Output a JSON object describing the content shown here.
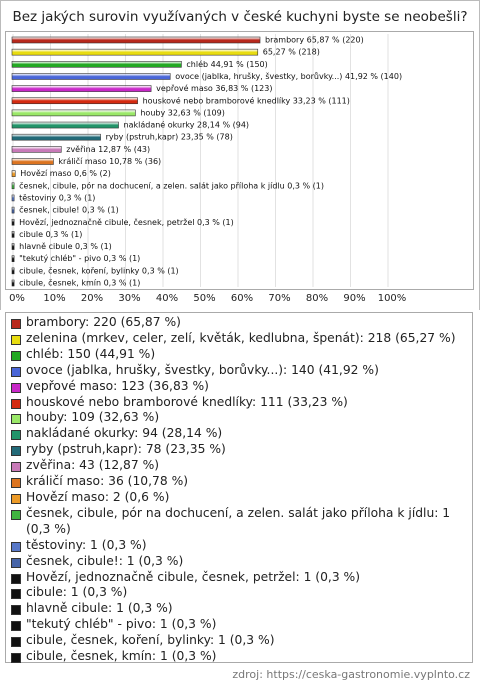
{
  "chart_data": {
    "type": "hbar",
    "title": "Bez jakých surovin využívaných v české kuchyni byste se neobešli?",
    "values": [
      65.87,
      65.27,
      44.91,
      41.92,
      36.83,
      33.23,
      32.63,
      28.14,
      23.35,
      12.87,
      10.78,
      0.6,
      0.3,
      0.3,
      0.3,
      0.3,
      0.3,
      0.3,
      0.3,
      0.3,
      0.3
    ],
    "value_labels": [
      "brambory 65,87 % (220)",
      "65,27 % (218)",
      "chléb 44,91 % (150)",
      "ovoce (jablka, hrušky, švestky, borůvky...) 41,92 % (140)",
      "vepřové maso 36,83 % (123)",
      "houskové nebo bramborové knedlíky 33,23 % (111)",
      "houby 32,63 % (109)",
      "nakládané okurky 28,14 % (94)",
      "ryby (pstruh,kapr) 23,35 % (78)",
      "zvěřina 12,87 % (43)",
      "králičí maso 10,78 % (36)",
      "Hovězí maso 0,6 % (2)",
      "česnek, cibule, pór na dochucení, a zelen. salát jako příloha k jídlu 0,3 % (1)",
      "těstoviny 0,3 % (1)",
      "česnek, cibule! 0,3 % (1)",
      "Hovězí, jednoznačně cibule, česnek, petržel 0,3 % (1)",
      "cibule 0,3 % (1)",
      "hlavně cibule 0,3 % (1)",
      "\"tekutý chléb\" - pivo 0,3 % (1)",
      "cibule, česnek, koření, bylinky 0,3 % (1)",
      "cibule, česnek, kmín 0,3 % (1)"
    ],
    "legend_labels": [
      "brambory: 220 (65,87 %)",
      "zelenina (mrkev, celer, zelí, květák, kedlubna, špenát): 218 (65,27 %)",
      "chléb: 150 (44,91 %)",
      "ovoce (jablka, hrušky, švestky, borůvky...): 140 (41,92 %)",
      "vepřové maso: 123 (36,83 %)",
      "houskové nebo bramborové knedlíky: 111 (33,23 %)",
      "houby: 109 (32,63 %)",
      "nakládané okurky: 94 (28,14 %)",
      "ryby (pstruh,kapr): 78 (23,35 %)",
      "zvěřina: 43 (12,87 %)",
      "králičí maso: 36 (10,78 %)",
      "Hovězí maso: 2 (0,6 %)",
      "česnek, cibule, pór na dochucení, a zelen. salát jako příloha k jídlu: 1 (0,3 %)",
      "těstoviny: 1 (0,3 %)",
      "česnek, cibule!: 1 (0,3 %)",
      "Hovězí, jednoznačně cibule, česnek, petržel: 1 (0,3 %)",
      "cibule: 1 (0,3 %)",
      "hlavně cibule: 1 (0,3 %)",
      "\"tekutý chléb\" - pivo: 1 (0,3 %)",
      "cibule, česnek, koření, bylinky: 1 (0,3 %)",
      "cibule, česnek, kmín: 1 (0,3 %)"
    ],
    "colors": [
      "#b8281c",
      "#e8dc10",
      "#22a822",
      "#4a66d8",
      "#c828c8",
      "#d42a10",
      "#9ae868",
      "#22946a",
      "#226a78",
      "#c87ab8",
      "#dc7420",
      "#ec9a26",
      "#40b440",
      "#5878c8",
      "#4664a8",
      "#111111",
      "#111111",
      "#111111",
      "#111111",
      "#111111",
      "#111111"
    ],
    "xlim": [
      0,
      100
    ],
    "xticks": [
      {
        "value": 0,
        "label": "0%"
      },
      {
        "value": 10,
        "label": "10%"
      },
      {
        "value": 20,
        "label": "20%"
      },
      {
        "value": 30,
        "label": "30%"
      },
      {
        "value": 40,
        "label": "40%"
      },
      {
        "value": 50,
        "label": "50%"
      },
      {
        "value": 60,
        "label": "60%"
      },
      {
        "value": 70,
        "label": "70%"
      },
      {
        "value": 80,
        "label": "80%"
      },
      {
        "value": 90,
        "label": "90%"
      },
      {
        "value": 100,
        "label": "100%"
      }
    ],
    "grid": true,
    "source": "zdroj: https://ceska-gastronomie.vyplnto.cz"
  }
}
